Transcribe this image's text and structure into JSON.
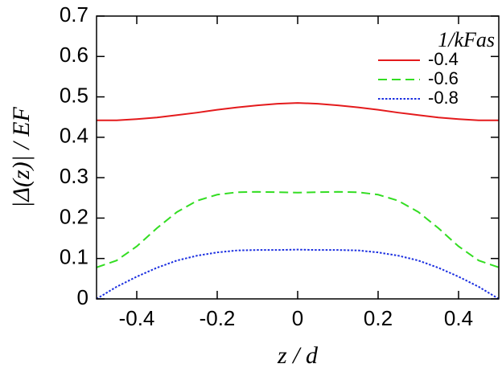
{
  "chart_data": {
    "type": "line",
    "x_label": "z / d",
    "y_label": "|Δ(z)| / EF",
    "legend_title": "1/kFas",
    "x": [
      -0.5,
      -0.45,
      -0.4,
      -0.35,
      -0.3,
      -0.25,
      -0.2,
      -0.15,
      -0.1,
      -0.05,
      0,
      0.05,
      0.1,
      0.15,
      0.2,
      0.25,
      0.3,
      0.35,
      0.4,
      0.45,
      0.5
    ],
    "series": [
      {
        "name": "-0.4",
        "color": "#e41a1c",
        "style": "solid",
        "values": [
          0.442,
          0.442,
          0.445,
          0.449,
          0.455,
          0.461,
          0.468,
          0.474,
          0.479,
          0.483,
          0.485,
          0.483,
          0.479,
          0.474,
          0.468,
          0.461,
          0.455,
          0.449,
          0.445,
          0.442,
          0.442
        ]
      },
      {
        "name": "-0.6",
        "color": "#33dd22",
        "style": "dashed",
        "values": [
          0.078,
          0.095,
          0.13,
          0.175,
          0.215,
          0.243,
          0.258,
          0.264,
          0.265,
          0.264,
          0.263,
          0.264,
          0.265,
          0.264,
          0.258,
          0.243,
          0.215,
          0.175,
          0.13,
          0.095,
          0.078
        ]
      },
      {
        "name": "-0.8",
        "color": "#1a2ee0",
        "style": "dotted",
        "values": [
          0.0,
          0.03,
          0.055,
          0.077,
          0.095,
          0.107,
          0.115,
          0.12,
          0.121,
          0.121,
          0.122,
          0.121,
          0.121,
          0.12,
          0.115,
          0.107,
          0.095,
          0.077,
          0.055,
          0.03,
          0.0
        ]
      }
    ],
    "xlim": [
      -0.5,
      0.5
    ],
    "xticks": [
      -0.4,
      -0.2,
      0,
      0.2,
      0.4
    ],
    "ylim": [
      0,
      0.7
    ],
    "yticks": [
      0,
      0.1,
      0.2,
      0.3,
      0.4,
      0.5,
      0.6,
      0.7
    ],
    "legend": "upper right"
  }
}
